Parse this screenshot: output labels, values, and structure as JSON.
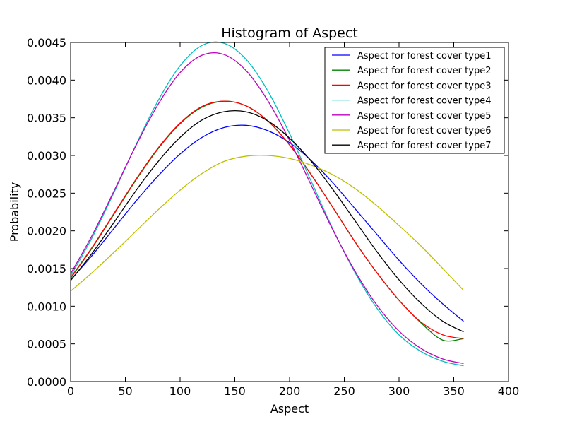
{
  "chart_data": {
    "type": "line",
    "title": "Histogram of Aspect",
    "xlabel": "Aspect",
    "ylabel": "Probability",
    "xlim": [
      0,
      400
    ],
    "ylim": [
      0,
      0.0045
    ],
    "xticks": [
      "0",
      "50",
      "100",
      "150",
      "200",
      "250",
      "300",
      "350",
      "400"
    ],
    "yticks": [
      "0.0000",
      "0.0005",
      "0.0010",
      "0.0015",
      "0.0020",
      "0.0025",
      "0.0030",
      "0.0035",
      "0.0040",
      "0.0045"
    ],
    "grid": false,
    "legend_position": "top-right",
    "x": [
      0,
      20,
      40,
      60,
      80,
      100,
      120,
      140,
      160,
      180,
      200,
      220,
      240,
      260,
      280,
      300,
      320,
      340,
      359
    ],
    "series": [
      {
        "name": "Aspect for forest cover type1",
        "color": "#0000ff",
        "values": [
          0.00135,
          0.00168,
          0.00204,
          0.0024,
          0.00273,
          0.00302,
          0.00324,
          0.00337,
          0.0034,
          0.00333,
          0.00317,
          0.00293,
          0.00263,
          0.00229,
          0.00195,
          0.00161,
          0.0013,
          0.00103,
          0.0008
        ]
      },
      {
        "name": "Aspect for forest cover type2",
        "color": "#008000",
        "values": [
          0.00137,
          0.00178,
          0.00223,
          0.00268,
          0.00309,
          0.00342,
          0.00364,
          0.00372,
          0.00366,
          0.00346,
          0.00314,
          0.00274,
          0.0023,
          0.00185,
          0.00144,
          0.00108,
          0.00078,
          0.00055,
          0.00057
        ]
      },
      {
        "name": "Aspect for forest cover type3",
        "color": "#ff0000",
        "values": [
          0.00138,
          0.00179,
          0.00224,
          0.00269,
          0.0031,
          0.00343,
          0.00365,
          0.00372,
          0.00366,
          0.00346,
          0.00314,
          0.00274,
          0.0023,
          0.00185,
          0.00144,
          0.00108,
          0.00079,
          0.00062,
          0.00057
        ]
      },
      {
        "name": "Aspect for forest cover type4",
        "color": "#00bfbf",
        "values": [
          0.0014,
          0.00192,
          0.00252,
          0.00315,
          0.00373,
          0.00419,
          0.00446,
          0.00449,
          0.00428,
          0.00386,
          0.00329,
          0.00265,
          0.00201,
          0.00144,
          0.00097,
          0.00062,
          0.0004,
          0.00027,
          0.00021
        ]
      },
      {
        "name": "Aspect for forest cover type5",
        "color": "#bf00bf",
        "values": [
          0.00143,
          0.00195,
          0.00254,
          0.00314,
          0.00368,
          0.0041,
          0.00433,
          0.00434,
          0.00413,
          0.00373,
          0.0032,
          0.0026,
          0.002,
          0.00146,
          0.00101,
          0.00067,
          0.00044,
          0.0003,
          0.00024
        ]
      },
      {
        "name": "Aspect for forest cover type6",
        "color": "#bfbf00",
        "values": [
          0.0012,
          0.00145,
          0.00172,
          0.002,
          0.00228,
          0.00254,
          0.00276,
          0.00292,
          0.00299,
          0.003,
          0.00296,
          0.00287,
          0.00274,
          0.00256,
          0.00233,
          0.00207,
          0.0018,
          0.0015,
          0.00121
        ]
      },
      {
        "name": "Aspect for forest cover type7",
        "color": "#000000",
        "values": [
          0.00134,
          0.00171,
          0.00212,
          0.00254,
          0.00292,
          0.00324,
          0.00347,
          0.00358,
          0.00358,
          0.00346,
          0.00323,
          0.00292,
          0.00254,
          0.00213,
          0.00172,
          0.00135,
          0.00104,
          0.0008,
          0.00066
        ]
      }
    ]
  }
}
